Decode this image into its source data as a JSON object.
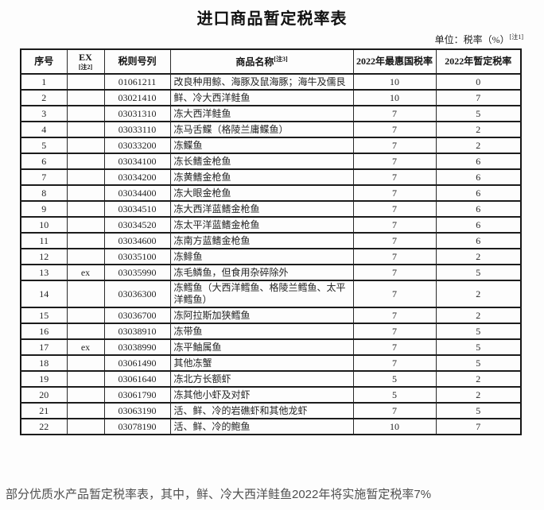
{
  "title": "进口商品暂定税率表",
  "unit_label": {
    "text": "单位：税率（%）",
    "note": "[注1]"
  },
  "table": {
    "headers": [
      {
        "label": "序号",
        "note": ""
      },
      {
        "label": "EX",
        "note": "[注2]"
      },
      {
        "label": "税则号列",
        "note": ""
      },
      {
        "label": "商品名称",
        "note": "[注3]"
      },
      {
        "label": "2022年最惠国税率",
        "note": ""
      },
      {
        "label": "2022年暂定税率",
        "note": ""
      }
    ],
    "rows": [
      [
        "1",
        "",
        "01061211",
        "改良种用鲸、海豚及鼠海豚；海牛及儒艮",
        "10",
        "0"
      ],
      [
        "2",
        "",
        "03021410",
        "鲜、冷大西洋鲑鱼",
        "10",
        "7"
      ],
      [
        "3",
        "",
        "03031310",
        "冻大西洋鲑鱼",
        "7",
        "5"
      ],
      [
        "4",
        "",
        "03033110",
        "冻马舌鲽（格陵兰庸鲽鱼）",
        "7",
        "2"
      ],
      [
        "5",
        "",
        "03033200",
        "冻鲽鱼",
        "7",
        "2"
      ],
      [
        "6",
        "",
        "03034100",
        "冻长鳍金枪鱼",
        "7",
        "6"
      ],
      [
        "7",
        "",
        "03034200",
        "冻黄鳍金枪鱼",
        "7",
        "6"
      ],
      [
        "8",
        "",
        "03034400",
        "冻大眼金枪鱼",
        "7",
        "6"
      ],
      [
        "9",
        "",
        "03034510",
        "冻大西洋蓝鳍金枪鱼",
        "7",
        "6"
      ],
      [
        "10",
        "",
        "03034520",
        "冻太平洋蓝鳍金枪鱼",
        "7",
        "6"
      ],
      [
        "11",
        "",
        "03034600",
        "冻南方蓝鳍金枪鱼",
        "7",
        "6"
      ],
      [
        "12",
        "",
        "03035100",
        "冻鲱鱼",
        "7",
        "2"
      ],
      [
        "13",
        "ex",
        "03035990",
        "冻毛鳞鱼，但食用杂碎除外",
        "7",
        "5"
      ],
      [
        "14",
        "",
        "03036300",
        "冻鳕鱼（大西洋鳕鱼、格陵兰鳕鱼、太平洋鳕鱼）",
        "7",
        "2"
      ],
      [
        "15",
        "",
        "03036700",
        "冻阿拉斯加狭鳕鱼",
        "7",
        "2"
      ],
      [
        "16",
        "",
        "03038910",
        "冻带鱼",
        "7",
        "5"
      ],
      [
        "17",
        "ex",
        "03038990",
        "冻平鲉属鱼",
        "7",
        "5"
      ],
      [
        "18",
        "",
        "03061490",
        "其他冻蟹",
        "7",
        "5"
      ],
      [
        "19",
        "",
        "03061640",
        "冻北方长额虾",
        "5",
        "2"
      ],
      [
        "20",
        "",
        "03061790",
        "冻其他小虾及对虾",
        "5",
        "2"
      ],
      [
        "21",
        "",
        "03063190",
        "活、鲜、冷的岩礁虾和其他龙虾",
        "7",
        "5"
      ],
      [
        "22",
        "",
        "03078190",
        "活、鲜、冷的鲍鱼",
        "10",
        "7"
      ]
    ]
  },
  "caption": "部分优质水产品暂定税率表，其中，鲜、冷大西洋鲑鱼2022年将实施暂定税率7%"
}
